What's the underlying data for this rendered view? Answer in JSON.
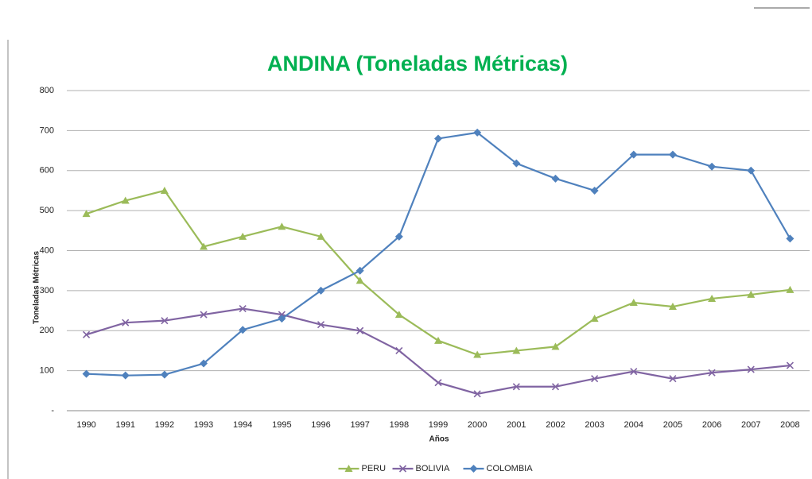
{
  "chart_data": {
    "type": "line",
    "title": "ANDINA (Toneladas Métricas)",
    "x_label": "Años",
    "y_label": "Toneladas Métricas",
    "categories": [
      "1990",
      "1991",
      "1992",
      "1993",
      "1994",
      "1995",
      "1996",
      "1997",
      "1998",
      "1999",
      "2000",
      "2001",
      "2002",
      "2003",
      "2004",
      "2005",
      "2006",
      "2007",
      "2008"
    ],
    "series": [
      {
        "name": "PERU",
        "color": "#9bbb59",
        "marker": "triangle",
        "values": [
          492,
          525,
          550,
          410,
          435,
          460,
          435,
          325,
          240,
          175,
          140,
          150,
          160,
          230,
          270,
          260,
          280,
          290,
          302
        ]
      },
      {
        "name": "BOLIVIA",
        "color": "#8064a2",
        "marker": "x",
        "values": [
          190,
          220,
          225,
          240,
          255,
          240,
          215,
          200,
          150,
          70,
          42,
          60,
          60,
          80,
          98,
          80,
          95,
          103,
          113
        ]
      },
      {
        "name": "COLOMBIA",
        "color": "#4f81bd",
        "marker": "diamond",
        "values": [
          92,
          88,
          90,
          118,
          202,
          230,
          300,
          350,
          435,
          680,
          695,
          618,
          580,
          550,
          640,
          640,
          610,
          600,
          430
        ]
      }
    ],
    "ylim": [
      0,
      800
    ],
    "yticks": [
      {
        "value": 0,
        "label": "-"
      },
      100,
      200,
      300,
      400,
      500,
      600,
      700,
      800
    ],
    "grid": true,
    "legend": "bottom"
  }
}
